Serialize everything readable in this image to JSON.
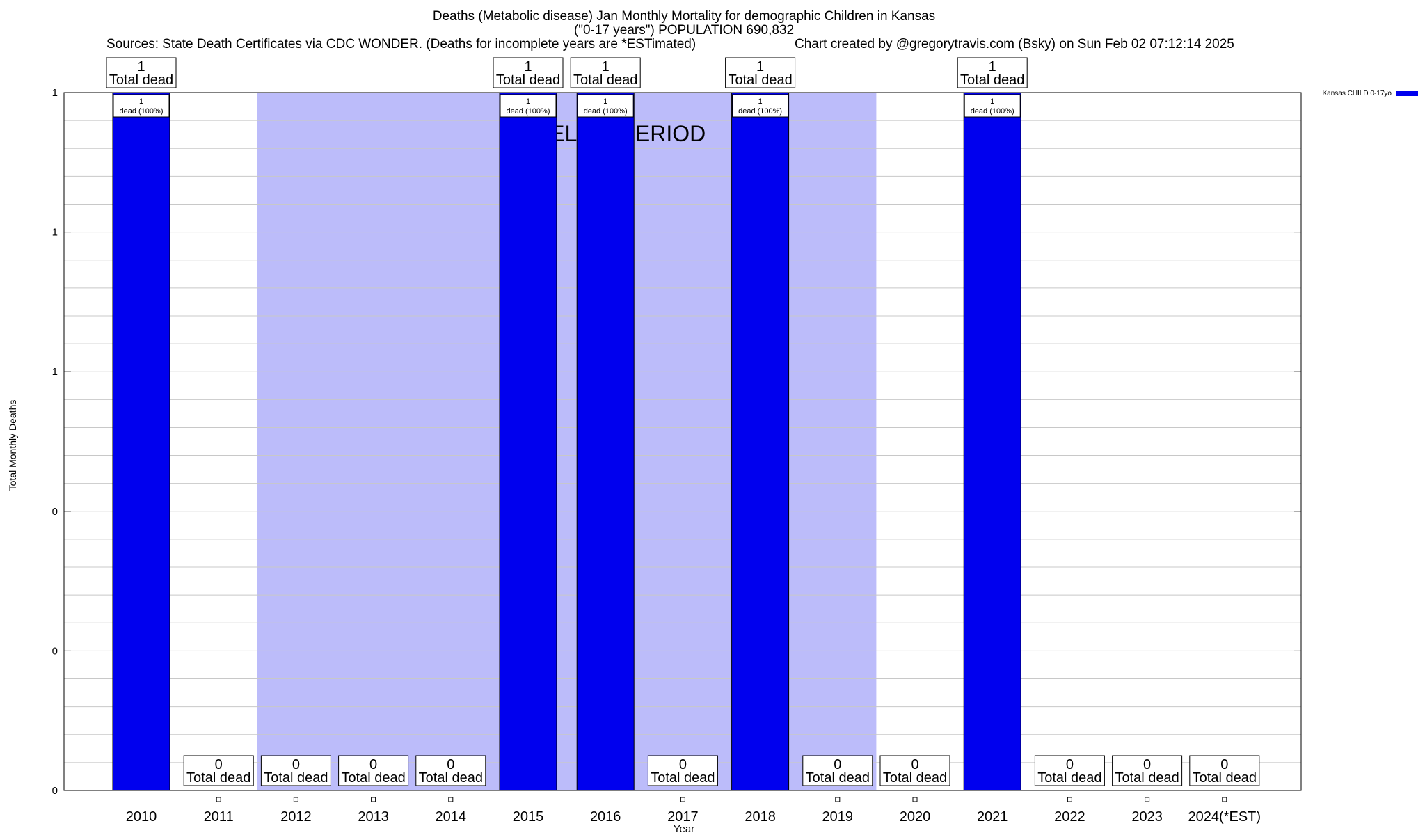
{
  "chart_data": {
    "type": "bar",
    "title_lines": [
      "Deaths (Metabolic disease) Jan Monthly Mortality for demographic Children in Kansas",
      "(\"0-17 years\") POPULATION 690,832"
    ],
    "sources": "Sources: State Death Certificates via CDC WONDER. (Deaths for incomplete years are *ESTimated)",
    "credit": "Chart created by @gregorytravis.com (Bsky) on Sun Feb 02 07:12:14 2025",
    "xlabel": "Year",
    "ylabel": "Total Monthly Deaths",
    "categories": [
      "2010",
      "2011",
      "2012",
      "2013",
      "2014",
      "2015",
      "2016",
      "2017",
      "2018",
      "2019",
      "2020",
      "2021",
      "2022",
      "2023",
      "2024(*EST)"
    ],
    "ylim": [
      0,
      1
    ],
    "y_tick_labels": [
      "0",
      "0",
      "0",
      "1",
      "1",
      "1"
    ],
    "grid": true,
    "legend_position": "top-right",
    "series": [
      {
        "name": "Kansas CHILD 0-17yo",
        "color": "#0000ee",
        "values": [
          1,
          0,
          0,
          0,
          0,
          1,
          1,
          0,
          1,
          0,
          0,
          1,
          0,
          0,
          0
        ]
      }
    ],
    "total_label_text": "Total dead",
    "bar_inner_label": "dead (100%)",
    "baseline": {
      "label": "BASELINE PERIOD",
      "start_category": "2012",
      "end_category": "2019",
      "color": "#bcbcfa"
    }
  }
}
